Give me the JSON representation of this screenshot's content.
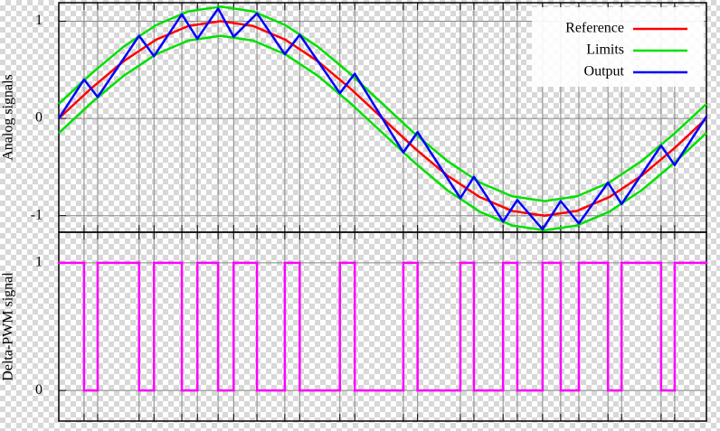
{
  "chart_data": [
    {
      "type": "line",
      "ylabel": "Analog signals",
      "legend": "upper right",
      "grid": true,
      "xlim": [
        0,
        1
      ],
      "ylim": [
        -1.17,
        1.19
      ],
      "yticks": [
        -1,
        0,
        1
      ],
      "xticks": [
        0,
        0.039,
        0.06,
        0.124,
        0.147,
        0.19,
        0.214,
        0.246,
        0.27,
        0.306,
        0.349,
        0.372,
        0.434,
        0.457,
        0.532,
        0.554,
        0.62,
        0.641,
        0.686,
        0.708,
        0.747,
        0.775,
        0.803,
        0.848,
        0.869,
        0.93,
        0.951,
        1
      ],
      "series": [
        {
          "name": "Reference",
          "color": "#ff0000",
          "x": [
            0,
            0.05,
            0.1,
            0.15,
            0.2,
            0.25,
            0.3,
            0.35,
            0.4,
            0.45,
            0.5,
            0.55,
            0.6,
            0.65,
            0.7,
            0.75,
            0.8,
            0.85,
            0.9,
            0.95,
            1
          ],
          "values": [
            0,
            0.309,
            0.588,
            0.809,
            0.951,
            1,
            0.951,
            0.809,
            0.588,
            0.309,
            0,
            -0.309,
            -0.588,
            -0.809,
            -0.951,
            -1,
            -0.951,
            -0.809,
            -0.588,
            -0.309,
            0
          ]
        },
        {
          "name": "Limits",
          "color": "#00e000",
          "x": [
            0,
            0.05,
            0.1,
            0.15,
            0.2,
            0.25,
            0.3,
            0.35,
            0.4,
            0.45,
            0.5,
            0.55,
            0.6,
            0.65,
            0.7,
            0.75,
            0.8,
            0.85,
            0.9,
            0.95,
            1
          ],
          "upper": [
            0.15,
            0.459,
            0.738,
            0.959,
            1.101,
            1.15,
            1.101,
            0.959,
            0.738,
            0.459,
            0.15,
            -0.159,
            -0.438,
            -0.659,
            -0.801,
            -0.85,
            -0.801,
            -0.659,
            -0.438,
            -0.159,
            0.15
          ],
          "lower": [
            -0.15,
            0.159,
            0.438,
            0.659,
            0.801,
            0.85,
            0.801,
            0.659,
            0.438,
            0.159,
            -0.15,
            -0.459,
            -0.738,
            -0.959,
            -1.101,
            -1.15,
            -1.101,
            -0.959,
            -0.738,
            -0.459,
            -0.15
          ]
        },
        {
          "name": "Output",
          "color": "#0000ff",
          "x": [
            0,
            0.039,
            0.06,
            0.124,
            0.147,
            0.19,
            0.214,
            0.246,
            0.27,
            0.306,
            0.349,
            0.372,
            0.434,
            0.457,
            0.532,
            0.554,
            0.62,
            0.641,
            0.686,
            0.708,
            0.747,
            0.775,
            0.803,
            0.848,
            0.869,
            0.93,
            0.951,
            1
          ],
          "values": [
            0,
            0.4,
            0.22,
            0.85,
            0.64,
            1.07,
            0.82,
            1.13,
            0.84,
            1.08,
            0.66,
            0.86,
            0.26,
            0.46,
            -0.35,
            -0.14,
            -0.82,
            -0.6,
            -1.06,
            -0.84,
            -1.14,
            -0.85,
            -1.08,
            -0.66,
            -0.88,
            -0.28,
            -0.48,
            0.02
          ]
        }
      ]
    },
    {
      "type": "step",
      "ylabel": "Delta-PWM signal",
      "grid": true,
      "color": "#ff00ff",
      "xlim": [
        0,
        1
      ],
      "ylim": [
        -0.24,
        1.24
      ],
      "yticks": [
        0,
        1
      ],
      "xticks": [
        0,
        0.039,
        0.06,
        0.124,
        0.147,
        0.19,
        0.214,
        0.246,
        0.27,
        0.306,
        0.349,
        0.372,
        0.434,
        0.457,
        0.532,
        0.554,
        0.62,
        0.641,
        0.686,
        0.708,
        0.747,
        0.775,
        0.803,
        0.848,
        0.869,
        0.93,
        0.951,
        1
      ],
      "x": [
        0,
        0.039,
        0.06,
        0.124,
        0.147,
        0.19,
        0.214,
        0.246,
        0.27,
        0.306,
        0.349,
        0.372,
        0.434,
        0.457,
        0.532,
        0.554,
        0.62,
        0.641,
        0.686,
        0.708,
        0.747,
        0.775,
        0.803,
        0.848,
        0.869,
        0.93,
        0.951,
        1
      ],
      "values": [
        1,
        0,
        1,
        0,
        1,
        0,
        1,
        0,
        1,
        0,
        1,
        0,
        1,
        0,
        1,
        0,
        1,
        0,
        1,
        0,
        1,
        0,
        1,
        0,
        1,
        0,
        1,
        1
      ]
    }
  ]
}
